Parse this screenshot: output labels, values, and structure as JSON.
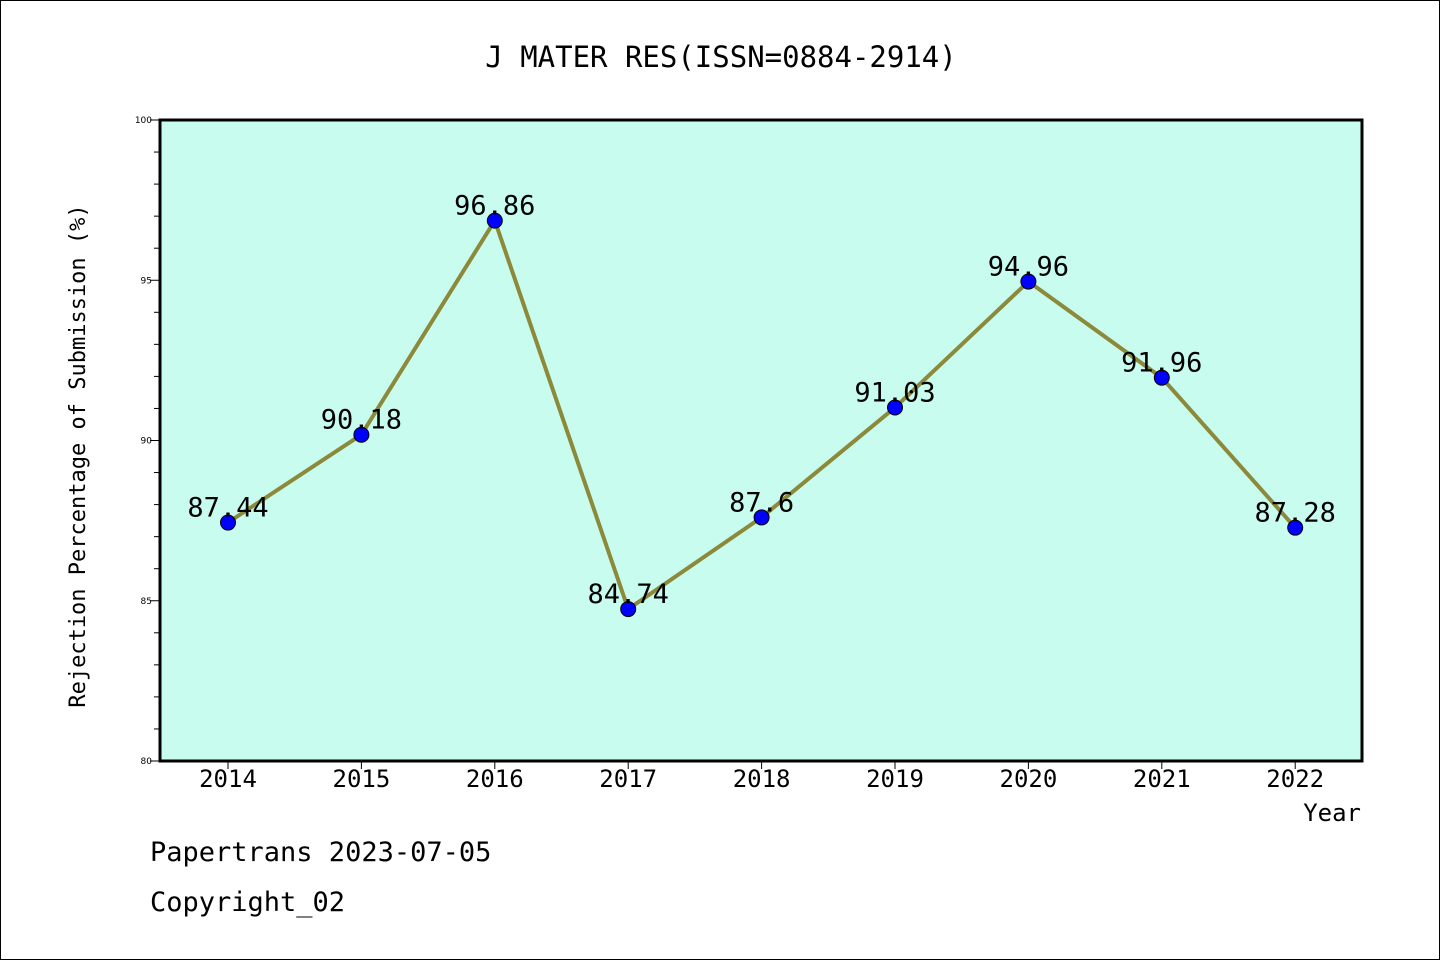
{
  "chart_data": {
    "type": "line",
    "title": "J MATER RES(ISSN=0884-2914)",
    "xlabel": "Year",
    "ylabel": "Rejection Percentage of Submission (%)",
    "categories": [
      "2014",
      "2015",
      "2016",
      "2017",
      "2018",
      "2019",
      "2020",
      "2021",
      "2022"
    ],
    "series": [
      {
        "values": [
          87.44,
          90.18,
          96.86,
          84.74,
          87.6,
          91.03,
          94.96,
          91.96,
          87.28
        ],
        "data_labels": [
          "87.44",
          "90.18",
          "96.86",
          "84.74",
          "87.6",
          "91.03",
          "94.96",
          "91.96",
          "87.28"
        ]
      }
    ],
    "ylim": [
      80,
      100
    ],
    "yticks": [
      80,
      85,
      90,
      95,
      100
    ],
    "y_minor_step": 1,
    "grid": false,
    "legend": "none",
    "colors": {
      "plot_background": "#c8fcee",
      "line": "#8c8a3a",
      "marker": "#0000ff"
    }
  },
  "footer": {
    "line1": "Papertrans 2023-07-05",
    "line2": "Copyright_02"
  }
}
